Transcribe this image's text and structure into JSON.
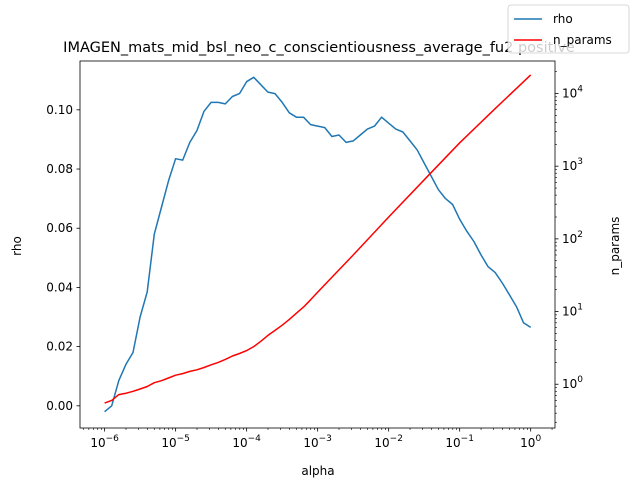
{
  "chart_data": {
    "type": "line",
    "title": "IMAGEN_mats_mid_bsl_neo_c_conscientiousness_average_fu2 positive",
    "xlabel": "alpha",
    "ylabel": "rho",
    "y2label": "n_params",
    "xscale": "log",
    "xlim": [
      4.5e-07,
      2.2
    ],
    "ylim": [
      -0.0075,
      0.1165
    ],
    "y2scale": "log",
    "y2lim": [
      0.25,
      28000
    ],
    "x_ticks": [
      "10^-6",
      "10^-5",
      "10^-4",
      "10^-3",
      "10^-2",
      "10^-1",
      "10^0"
    ],
    "y_ticks": [
      "0.00",
      "0.02",
      "0.04",
      "0.06",
      "0.08",
      "0.10"
    ],
    "y2_ticks": [
      "10^0",
      "10^1",
      "10^2",
      "10^3",
      "10^4"
    ],
    "legend_position": "top-right",
    "grid": false,
    "series": [
      {
        "name": "rho",
        "color": "#1f77b4",
        "axis": "left",
        "x_log10": [
          -6.0,
          -5.9,
          -5.8,
          -5.7,
          -5.6,
          -5.5,
          -5.4,
          -5.3,
          -5.2,
          -5.1,
          -5.0,
          -4.9,
          -4.8,
          -4.7,
          -4.6,
          -4.5,
          -4.4,
          -4.3,
          -4.2,
          -4.1,
          -4.0,
          -3.9,
          -3.8,
          -3.7,
          -3.6,
          -3.5,
          -3.4,
          -3.3,
          -3.2,
          -3.1,
          -3.0,
          -2.9,
          -2.8,
          -2.7,
          -2.6,
          -2.5,
          -2.4,
          -2.3,
          -2.2,
          -2.1,
          -2.0,
          -1.9,
          -1.8,
          -1.7,
          -1.6,
          -1.5,
          -1.4,
          -1.3,
          -1.2,
          -1.1,
          -1.0,
          -0.9,
          -0.8,
          -0.7,
          -0.6,
          -0.5,
          -0.4,
          -0.3,
          -0.2,
          -0.1,
          0.0
        ],
        "values": [
          -0.002,
          0.0,
          0.0085,
          0.014,
          0.018,
          0.03,
          0.0385,
          0.058,
          0.067,
          0.076,
          0.0835,
          0.083,
          0.089,
          0.093,
          0.0995,
          0.1025,
          0.1025,
          0.102,
          0.1045,
          0.1055,
          0.1095,
          0.111,
          0.1085,
          0.106,
          0.1055,
          0.1025,
          0.099,
          0.0975,
          0.0975,
          0.095,
          0.0945,
          0.094,
          0.091,
          0.0915,
          0.089,
          0.0895,
          0.0915,
          0.0935,
          0.0945,
          0.0975,
          0.0955,
          0.0935,
          0.0925,
          0.0895,
          0.0865,
          0.082,
          0.0775,
          0.073,
          0.07,
          0.068,
          0.063,
          0.059,
          0.0555,
          0.051,
          0.047,
          0.045,
          0.0415,
          0.0375,
          0.0335,
          0.028,
          0.0265
        ]
      },
      {
        "name": "n_params",
        "color": "#ff0000",
        "axis": "right",
        "x_log10": [
          -6.0,
          -5.9,
          -5.8,
          -5.7,
          -5.6,
          -5.5,
          -5.4,
          -5.3,
          -5.2,
          -5.1,
          -5.0,
          -4.9,
          -4.8,
          -4.7,
          -4.6,
          -4.5,
          -4.4,
          -4.3,
          -4.2,
          -4.1,
          -4.0,
          -3.9,
          -3.8,
          -3.7,
          -3.6,
          -3.5,
          -3.4,
          -3.3,
          -3.2,
          -3.1,
          -3.0,
          -2.5,
          -2.0,
          -1.5,
          -1.0,
          -0.5,
          0.0
        ],
        "values": [
          0.55,
          0.6,
          0.72,
          0.75,
          0.8,
          0.86,
          0.93,
          1.05,
          1.12,
          1.22,
          1.33,
          1.4,
          1.5,
          1.58,
          1.7,
          1.85,
          2.0,
          2.2,
          2.45,
          2.65,
          2.9,
          3.3,
          3.9,
          4.7,
          5.5,
          6.5,
          7.8,
          9.5,
          11.5,
          14.5,
          18.5,
          60,
          200,
          650,
          2100,
          6200,
          18000
        ]
      }
    ]
  }
}
